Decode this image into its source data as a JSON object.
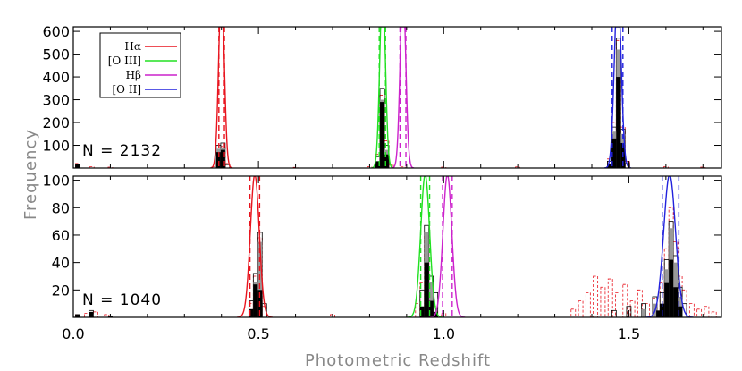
{
  "figure": {
    "xlabel": "Photometric Redshift",
    "ylabel": "Frequency"
  },
  "legend": [
    {
      "label": "Hα",
      "color": "#e8141e"
    },
    {
      "label": "[O III]",
      "color": "#22e022"
    },
    {
      "label": "Hβ",
      "color": "#cc22cc"
    },
    {
      "label": "[O II]",
      "color": "#2222dd"
    }
  ],
  "chart_data": [
    {
      "type": "bar",
      "panel": "top",
      "annotation": "N = 2132",
      "xlim": [
        0.0,
        1.75
      ],
      "ylim": [
        0,
        620
      ],
      "x_ticks": [
        0.0,
        0.5,
        1.0,
        1.5
      ],
      "x_tick_labels": [
        "0.0",
        "0.5",
        "1.0",
        "1.5"
      ],
      "y_ticks": [
        100,
        200,
        300,
        400,
        500,
        600
      ],
      "y_tick_labels": [
        "100",
        "200",
        "300",
        "400",
        "500",
        "600"
      ],
      "filter_curves": [
        {
          "name": "Hα",
          "color": "#e8141e",
          "center": 0.4,
          "sigma": 0.0075,
          "peak": 800,
          "dashed": [
            0.393,
            0.408
          ]
        },
        {
          "name": "[O III]",
          "color": "#22e022",
          "center": 0.835,
          "sigma": 0.0075,
          "peak": 800,
          "dashed": [
            0.826,
            0.843
          ]
        },
        {
          "name": "Hβ",
          "color": "#cc22cc",
          "center": 0.89,
          "sigma": 0.0075,
          "peak": 800,
          "dashed": [
            0.882,
            0.898
          ]
        },
        {
          "name": "[O II]",
          "color": "#2222dd",
          "center": 1.47,
          "sigma": 0.009,
          "peak": 800,
          "dashed": [
            1.455,
            1.484
          ]
        }
      ],
      "series": [
        {
          "name": "all",
          "style": "outline-red-dashed",
          "bins": [
            [
              0.012,
              20
            ],
            [
              0.05,
              6
            ],
            [
              0.1,
              4
            ],
            [
              0.38,
              5
            ],
            [
              0.392,
              80
            ],
            [
              0.404,
              95
            ],
            [
              0.416,
              20
            ],
            [
              0.6,
              3
            ],
            [
              0.8,
              6
            ],
            [
              0.822,
              60
            ],
            [
              0.834,
              320
            ],
            [
              0.846,
              120
            ],
            [
              0.858,
              15
            ],
            [
              0.89,
              5
            ],
            [
              1.0,
              4
            ],
            [
              1.2,
              5
            ],
            [
              1.448,
              40
            ],
            [
              1.46,
              200
            ],
            [
              1.472,
              560
            ],
            [
              1.484,
              180
            ],
            [
              1.496,
              30
            ],
            [
              1.6,
              6
            ],
            [
              1.7,
              4
            ]
          ]
        },
        {
          "name": "outline",
          "style": "outline-black",
          "bins": [
            [
              0.012,
              15
            ],
            [
              0.392,
              100
            ],
            [
              0.404,
              110
            ],
            [
              0.416,
              15
            ],
            [
              0.822,
              50
            ],
            [
              0.834,
              350
            ],
            [
              0.846,
              100
            ],
            [
              1.448,
              30
            ],
            [
              1.46,
              180
            ],
            [
              1.472,
              570
            ],
            [
              1.484,
              170
            ],
            [
              1.496,
              20
            ]
          ]
        },
        {
          "name": "grey",
          "style": "fill-grey",
          "bins": [
            [
              0.392,
              85
            ],
            [
              0.404,
              90
            ],
            [
              0.834,
              300
            ],
            [
              0.846,
              80
            ],
            [
              1.46,
              160
            ],
            [
              1.472,
              520
            ],
            [
              1.484,
              150
            ]
          ]
        },
        {
          "name": "black",
          "style": "fill-black",
          "bins": [
            [
              0.012,
              18
            ],
            [
              0.392,
              70
            ],
            [
              0.404,
              80
            ],
            [
              0.822,
              30
            ],
            [
              0.834,
              290
            ],
            [
              0.846,
              60
            ],
            [
              1.448,
              20
            ],
            [
              1.46,
              130
            ],
            [
              1.472,
              400
            ],
            [
              1.484,
              110
            ]
          ]
        }
      ]
    },
    {
      "type": "bar",
      "panel": "bottom",
      "annotation": "N = 1040",
      "xlim": [
        0.0,
        1.75
      ],
      "ylim": [
        0,
        103
      ],
      "x_ticks": [
        0.0,
        0.5,
        1.0,
        1.5
      ],
      "x_tick_labels": [
        "0.0",
        "0.5",
        "1.0",
        "1.5"
      ],
      "y_ticks": [
        20,
        40,
        60,
        80,
        100
      ],
      "y_tick_labels": [
        "20",
        "40",
        "60",
        "80",
        "100"
      ],
      "filter_curves": [
        {
          "name": "Hα",
          "color": "#e8141e",
          "center": 0.49,
          "sigma": 0.012,
          "peak": 104,
          "dashed": [
            0.477,
            0.503
          ]
        },
        {
          "name": "[O III]",
          "color": "#22e022",
          "center": 0.95,
          "sigma": 0.012,
          "peak": 104,
          "dashed": [
            0.938,
            0.962
          ]
        },
        {
          "name": "Hβ",
          "color": "#cc22cc",
          "center": 1.01,
          "sigma": 0.012,
          "peak": 104,
          "dashed": [
            0.997,
            1.023
          ]
        },
        {
          "name": "[O II]",
          "color": "#2222dd",
          "center": 1.61,
          "sigma": 0.016,
          "peak": 104,
          "dashed": [
            1.59,
            1.635
          ]
        }
      ],
      "series": [
        {
          "name": "all",
          "style": "outline-red-dashed",
          "bins": [
            [
              0.012,
              2
            ],
            [
              0.036,
              3
            ],
            [
              0.06,
              4
            ],
            [
              0.09,
              2
            ],
            [
              0.48,
              10
            ],
            [
              0.492,
              30
            ],
            [
              0.504,
              58
            ],
            [
              0.516,
              8
            ],
            [
              0.7,
              2
            ],
            [
              0.93,
              10
            ],
            [
              0.942,
              25
            ],
            [
              0.954,
              60
            ],
            [
              0.966,
              25
            ],
            [
              0.978,
              8
            ],
            [
              1.0,
              3
            ],
            [
              1.35,
              6
            ],
            [
              1.37,
              12
            ],
            [
              1.39,
              18
            ],
            [
              1.41,
              30
            ],
            [
              1.43,
              22
            ],
            [
              1.45,
              28
            ],
            [
              1.47,
              18
            ],
            [
              1.49,
              24
            ],
            [
              1.51,
              12
            ],
            [
              1.53,
              20
            ],
            [
              1.55,
              10
            ],
            [
              1.57,
              14
            ],
            [
              1.59,
              25
            ],
            [
              1.602,
              50
            ],
            [
              1.614,
              80
            ],
            [
              1.626,
              55
            ],
            [
              1.638,
              30
            ],
            [
              1.65,
              20
            ],
            [
              1.67,
              10
            ],
            [
              1.69,
              6
            ],
            [
              1.71,
              8
            ],
            [
              1.73,
              4
            ]
          ]
        },
        {
          "name": "outline",
          "style": "outline-black",
          "bins": [
            [
              0.012,
              2
            ],
            [
              0.048,
              5
            ],
            [
              0.48,
              12
            ],
            [
              0.492,
              32
            ],
            [
              0.504,
              62
            ],
            [
              0.516,
              10
            ],
            [
              0.942,
              20
            ],
            [
              0.954,
              67
            ],
            [
              0.966,
              30
            ],
            [
              0.978,
              18
            ],
            [
              1.46,
              5
            ],
            [
              1.5,
              8
            ],
            [
              1.54,
              10
            ],
            [
              1.57,
              15
            ],
            [
              1.59,
              18
            ],
            [
              1.602,
              42
            ],
            [
              1.614,
              70
            ],
            [
              1.626,
              45
            ],
            [
              1.638,
              22
            ],
            [
              1.65,
              10
            ]
          ]
        },
        {
          "name": "grey",
          "style": "fill-grey",
          "bins": [
            [
              0.492,
              26
            ],
            [
              0.504,
              55
            ],
            [
              0.954,
              62
            ],
            [
              0.966,
              26
            ],
            [
              1.54,
              6
            ],
            [
              1.57,
              10
            ],
            [
              1.602,
              35
            ],
            [
              1.614,
              65
            ],
            [
              1.626,
              40
            ],
            [
              1.638,
              15
            ]
          ]
        },
        {
          "name": "black",
          "style": "fill-black",
          "bins": [
            [
              0.012,
              2
            ],
            [
              0.048,
              4
            ],
            [
              0.1,
              1
            ],
            [
              0.48,
              6
            ],
            [
              0.492,
              24
            ],
            [
              0.504,
              20
            ],
            [
              0.942,
              8
            ],
            [
              0.954,
              40
            ],
            [
              0.966,
              12
            ],
            [
              0.978,
              4
            ],
            [
              1.58,
              5
            ],
            [
              1.59,
              10
            ],
            [
              1.602,
              25
            ],
            [
              1.614,
              42
            ],
            [
              1.626,
              22
            ],
            [
              1.638,
              8
            ]
          ]
        }
      ]
    }
  ]
}
